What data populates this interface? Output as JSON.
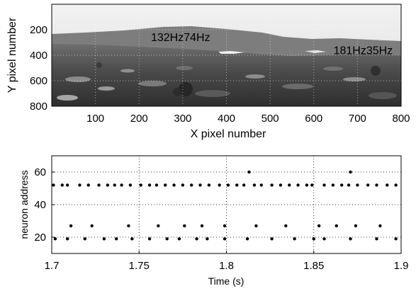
{
  "chart_data": [
    {
      "type": "image",
      "xlabel": "X pixel number",
      "ylabel": "Y pixel number",
      "xlim": [
        0,
        800
      ],
      "ylim": [
        0,
        800
      ],
      "y_inverted": true,
      "xticks": [
        100,
        200,
        300,
        400,
        500,
        600,
        700,
        800
      ],
      "yticks": [
        200,
        400,
        600,
        800
      ],
      "grid": true,
      "annotations": [
        {
          "text": "132Hz74Hz",
          "x": 295,
          "y": 260
        },
        {
          "text": "181Hz35Hz",
          "x": 713,
          "y": 365
        }
      ],
      "colors": {
        "sky": "#e8e8e8",
        "hills": "#727272",
        "ground": "#3c3c3c"
      }
    },
    {
      "type": "scatter",
      "xlabel": "Time (s)",
      "ylabel": "neuron address",
      "xlim": [
        1.7,
        1.9
      ],
      "ylim": [
        10,
        70
      ],
      "xticks": [
        "1.7",
        "1.75",
        "1.8",
        "1.85",
        "1.9"
      ],
      "yticks": [
        "20",
        "40",
        "60"
      ],
      "grid": true,
      "series": [
        {
          "y": 52,
          "x": [
            1.701,
            1.706,
            1.709,
            1.716,
            1.721,
            1.727,
            1.732,
            1.736,
            1.74,
            1.745,
            1.751,
            1.756,
            1.76,
            1.765,
            1.77,
            1.775,
            1.78,
            1.785,
            1.79,
            1.796,
            1.801,
            1.806,
            1.81,
            1.816,
            1.82,
            1.826,
            1.831,
            1.836,
            1.841,
            1.846,
            1.849,
            1.856,
            1.861,
            1.866,
            1.87,
            1.875,
            1.881,
            1.886,
            1.892,
            1.897
          ]
        },
        {
          "y": 27,
          "x": [
            1.711,
            1.723,
            1.744,
            1.761,
            1.776,
            1.786,
            1.799,
            1.817,
            1.834,
            1.853,
            1.863,
            1.874,
            1.888
          ]
        },
        {
          "y": 19,
          "x": [
            1.702,
            1.709,
            1.719,
            1.73,
            1.737,
            1.746,
            1.756,
            1.766,
            1.773,
            1.783,
            1.789,
            1.799,
            1.812,
            1.826,
            1.839,
            1.85,
            1.856,
            1.871,
            1.886,
            1.897
          ]
        },
        {
          "y": 60,
          "x": [
            1.813,
            1.871
          ]
        }
      ]
    }
  ]
}
